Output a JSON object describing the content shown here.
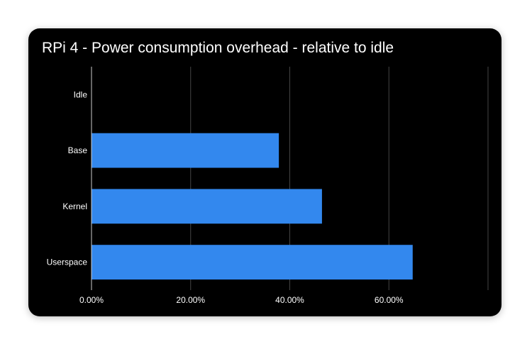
{
  "chart_data": {
    "type": "bar",
    "orientation": "horizontal",
    "title": "RPi 4 - Power consumption overhead - relative to idle",
    "categories": [
      "Idle",
      "Base",
      "Kernel",
      "Userspace"
    ],
    "values": [
      0.0,
      37.8,
      46.5,
      64.8
    ],
    "x_ticks": [
      "0.00%",
      "20.00%",
      "40.00%",
      "60.00%"
    ],
    "x_tick_values": [
      0,
      20,
      40,
      60
    ],
    "xlim": [
      0,
      80
    ],
    "xlabel": "",
    "ylabel": "",
    "grid": true,
    "legend": "none",
    "colors": {
      "bar": "#3388ee",
      "background": "#000000",
      "grid": "#444444",
      "axis": "#cccccc",
      "text": "#ffffff"
    }
  }
}
